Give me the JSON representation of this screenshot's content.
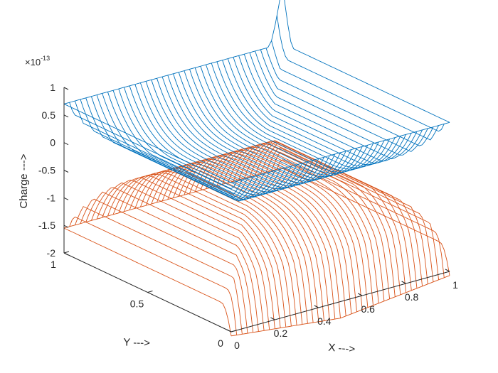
{
  "chart_data": {
    "type": "surface-mesh-3d",
    "title": "",
    "xlabel": "X --->",
    "ylabel": "Y --->",
    "zlabel": "Charge --->",
    "z_multiplier_base": "×10",
    "z_multiplier_exponent": "-13",
    "xlim": [
      0,
      1
    ],
    "ylim": [
      0,
      1
    ],
    "zlim": [
      -2e-13,
      1e-13
    ],
    "x_ticks": [
      {
        "value": 0,
        "label": "0"
      },
      {
        "value": 0.2,
        "label": "0.2"
      },
      {
        "value": 0.4,
        "label": "0.4"
      },
      {
        "value": 0.6,
        "label": "0.6"
      },
      {
        "value": 0.8,
        "label": "0.8"
      },
      {
        "value": 1,
        "label": "1"
      }
    ],
    "y_ticks": [
      {
        "value": 0,
        "label": "0"
      },
      {
        "value": 0.5,
        "label": "0.5"
      },
      {
        "value": 1,
        "label": "1"
      }
    ],
    "z_ticks": [
      {
        "value": 1e-13,
        "label": "1"
      },
      {
        "value": 5e-14,
        "label": "0.5"
      },
      {
        "value": 0,
        "label": "0"
      },
      {
        "value": -5e-14,
        "label": "-0.5"
      },
      {
        "value": -1e-13,
        "label": "-1"
      },
      {
        "value": -1.5e-13,
        "label": "-1.5"
      },
      {
        "value": -2e-13,
        "label": "-2"
      }
    ],
    "grid": false,
    "series": [
      {
        "color": "#0072BD",
        "mesh_lines": 40,
        "center_value": -2e-14,
        "edge_value": 7e-14,
        "corner_spike": 1.6e-13,
        "shape": "bowl"
      },
      {
        "color": "#D95319",
        "mesh_lines": 40,
        "center_value": -4.5e-14,
        "edge_value": -1.55e-13,
        "edge_drop": -2.3e-13,
        "shape": "dome"
      }
    ]
  }
}
